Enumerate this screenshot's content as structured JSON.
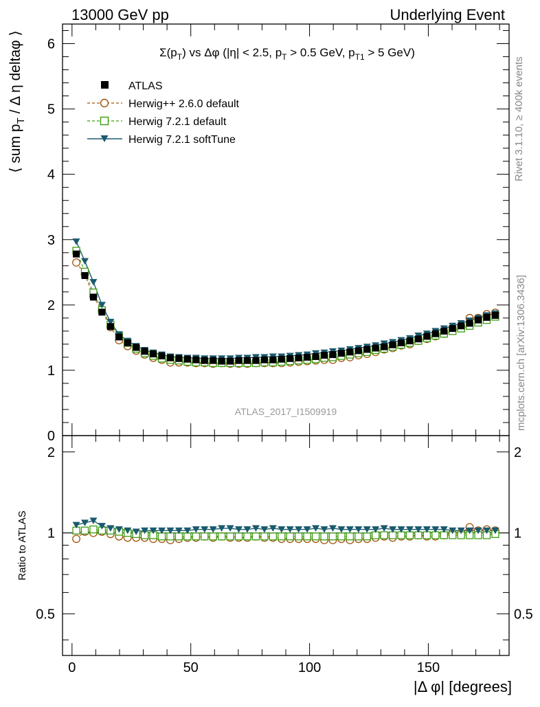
{
  "header": {
    "left": "13000 GeV pp",
    "right": "Underlying Event"
  },
  "side_labels": {
    "rivet": "Rivet 3.1.10, ≥ 400k events",
    "mcplots": "mcplots.cern.ch [arXiv:1306.3436]"
  },
  "watermark": "ATLAS_2017_I1509919",
  "colors": {
    "atlas": "#000000",
    "herwigpp": "#a0520a",
    "herwig721": "#3a9c0e",
    "softtune": "#1a5a6e",
    "watermark": "#999999",
    "side_text": "#888888"
  },
  "chart_data": [
    {
      "type": "line",
      "title_parts": {
        "t1": "Σ(p",
        "t1sub": "T",
        "t2": ") vs Δφ (|η| < 2.5, p",
        "t2sub": "T",
        "t3": " > 0.5 GeV, p",
        "t3sub": "T1",
        "t4": " > 5 GeV)"
      },
      "ylabel_parts": {
        "a": "⟨ sum p",
        "sub": "T",
        "b": " / Δ η deltaφ ⟩"
      },
      "xlim": [
        -4,
        184
      ],
      "ylim": [
        0,
        6.3
      ],
      "yticks": [
        0,
        1,
        2,
        3,
        4,
        5,
        6
      ],
      "ytick_labels": [
        "0",
        "1",
        "2",
        "3",
        "4",
        "5",
        "6"
      ],
      "x": [
        1.8,
        5.4,
        9.0,
        12.6,
        16.2,
        19.8,
        23.4,
        27.0,
        30.6,
        34.2,
        37.8,
        41.4,
        45.0,
        48.6,
        52.2,
        55.8,
        59.4,
        63.0,
        66.6,
        70.2,
        73.8,
        77.4,
        81.0,
        84.6,
        88.2,
        91.8,
        95.4,
        99.0,
        102.6,
        106.2,
        109.8,
        113.4,
        117.0,
        120.6,
        124.2,
        127.8,
        131.4,
        135.0,
        138.6,
        142.2,
        145.8,
        149.4,
        153.0,
        156.6,
        160.2,
        163.8,
        167.4,
        171.0,
        174.6,
        178.2
      ],
      "series": [
        {
          "name": "ATLAS",
          "marker": "square",
          "values": [
            2.78,
            2.45,
            2.12,
            1.89,
            1.67,
            1.51,
            1.42,
            1.35,
            1.29,
            1.25,
            1.22,
            1.19,
            1.18,
            1.17,
            1.16,
            1.15,
            1.15,
            1.14,
            1.14,
            1.15,
            1.15,
            1.15,
            1.16,
            1.16,
            1.17,
            1.18,
            1.19,
            1.2,
            1.21,
            1.23,
            1.24,
            1.26,
            1.28,
            1.3,
            1.32,
            1.34,
            1.36,
            1.39,
            1.42,
            1.45,
            1.48,
            1.52,
            1.56,
            1.6,
            1.64,
            1.68,
            1.72,
            1.77,
            1.81,
            1.84
          ]
        },
        {
          "name": "Herwig++ 2.6.0 default",
          "marker": "open-circle",
          "values": [
            2.65,
            2.47,
            2.13,
            1.91,
            1.66,
            1.46,
            1.37,
            1.3,
            1.24,
            1.19,
            1.16,
            1.12,
            1.12,
            1.12,
            1.11,
            1.11,
            1.1,
            1.11,
            1.1,
            1.1,
            1.1,
            1.11,
            1.11,
            1.11,
            1.11,
            1.12,
            1.13,
            1.14,
            1.15,
            1.16,
            1.16,
            1.19,
            1.2,
            1.23,
            1.25,
            1.28,
            1.32,
            1.34,
            1.38,
            1.4,
            1.45,
            1.48,
            1.52,
            1.56,
            1.64,
            1.68,
            1.8,
            1.8,
            1.86,
            1.88
          ]
        },
        {
          "name": "Herwig 7.2.1 default",
          "marker": "open-square",
          "values": [
            2.83,
            2.51,
            2.19,
            1.92,
            1.7,
            1.53,
            1.42,
            1.33,
            1.26,
            1.22,
            1.18,
            1.16,
            1.15,
            1.13,
            1.12,
            1.12,
            1.11,
            1.11,
            1.11,
            1.11,
            1.11,
            1.11,
            1.12,
            1.12,
            1.13,
            1.14,
            1.15,
            1.16,
            1.17,
            1.19,
            1.2,
            1.22,
            1.24,
            1.26,
            1.28,
            1.31,
            1.33,
            1.36,
            1.39,
            1.42,
            1.45,
            1.49,
            1.53,
            1.56,
            1.6,
            1.64,
            1.68,
            1.73,
            1.77,
            1.82
          ]
        },
        {
          "name": "Herwig 7.2.1 softTune",
          "marker": "down-triangle",
          "values": [
            2.97,
            2.67,
            2.35,
            2.0,
            1.74,
            1.55,
            1.45,
            1.37,
            1.31,
            1.27,
            1.24,
            1.21,
            1.2,
            1.19,
            1.19,
            1.18,
            1.18,
            1.18,
            1.18,
            1.19,
            1.19,
            1.2,
            1.2,
            1.21,
            1.21,
            1.22,
            1.23,
            1.24,
            1.26,
            1.27,
            1.29,
            1.3,
            1.32,
            1.34,
            1.36,
            1.38,
            1.41,
            1.43,
            1.46,
            1.49,
            1.53,
            1.56,
            1.6,
            1.64,
            1.68,
            1.72,
            1.76,
            1.8,
            1.84,
            1.87
          ]
        }
      ]
    },
    {
      "type": "line",
      "ylabel": "Ratio to ATLAS",
      "xlabel_parts": {
        "a": "|Δ φ| [degrees]"
      },
      "xlim": [
        -4,
        184
      ],
      "ylim": [
        0.35,
        2.3
      ],
      "xticks": [
        0,
        50,
        100,
        150
      ],
      "xtick_labels": [
        "0",
        "50",
        "100",
        "150"
      ],
      "yticks": [
        0.5,
        1,
        2
      ],
      "ytick_labels": [
        "0.5",
        "1",
        "2"
      ],
      "series": [
        {
          "name": "Herwig++ 2.6.0 default",
          "marker": "open-circle",
          "values": [
            0.95,
            1.01,
            1.0,
            1.01,
            0.99,
            0.97,
            0.96,
            0.96,
            0.96,
            0.95,
            0.95,
            0.94,
            0.95,
            0.96,
            0.96,
            0.97,
            0.96,
            0.97,
            0.96,
            0.96,
            0.96,
            0.97,
            0.96,
            0.96,
            0.95,
            0.95,
            0.95,
            0.95,
            0.95,
            0.94,
            0.94,
            0.95,
            0.94,
            0.95,
            0.95,
            0.96,
            0.97,
            0.96,
            0.97,
            0.97,
            0.98,
            0.97,
            0.97,
            0.98,
            1.0,
            1.0,
            1.05,
            1.02,
            1.03,
            1.02
          ]
        },
        {
          "name": "Herwig 7.2.1 default",
          "marker": "open-square",
          "values": [
            1.02,
            1.02,
            1.03,
            1.02,
            1.02,
            1.01,
            1.0,
            0.99,
            0.98,
            0.98,
            0.97,
            0.97,
            0.97,
            0.97,
            0.97,
            0.97,
            0.97,
            0.97,
            0.97,
            0.97,
            0.97,
            0.97,
            0.97,
            0.97,
            0.97,
            0.97,
            0.97,
            0.97,
            0.97,
            0.97,
            0.97,
            0.97,
            0.97,
            0.97,
            0.97,
            0.98,
            0.98,
            0.98,
            0.98,
            0.98,
            0.98,
            0.98,
            0.98,
            0.98,
            0.98,
            0.98,
            0.98,
            0.98,
            0.98,
            0.99
          ]
        },
        {
          "name": "Herwig 7.2.1 softTune",
          "marker": "down-triangle",
          "values": [
            1.07,
            1.09,
            1.11,
            1.06,
            1.04,
            1.03,
            1.02,
            1.01,
            1.02,
            1.02,
            1.02,
            1.02,
            1.02,
            1.02,
            1.03,
            1.03,
            1.03,
            1.04,
            1.04,
            1.03,
            1.03,
            1.04,
            1.03,
            1.04,
            1.03,
            1.03,
            1.03,
            1.03,
            1.04,
            1.03,
            1.04,
            1.03,
            1.03,
            1.03,
            1.03,
            1.03,
            1.04,
            1.03,
            1.03,
            1.03,
            1.03,
            1.03,
            1.03,
            1.03,
            1.02,
            1.02,
            1.02,
            1.02,
            1.02,
            1.02
          ]
        }
      ]
    }
  ]
}
